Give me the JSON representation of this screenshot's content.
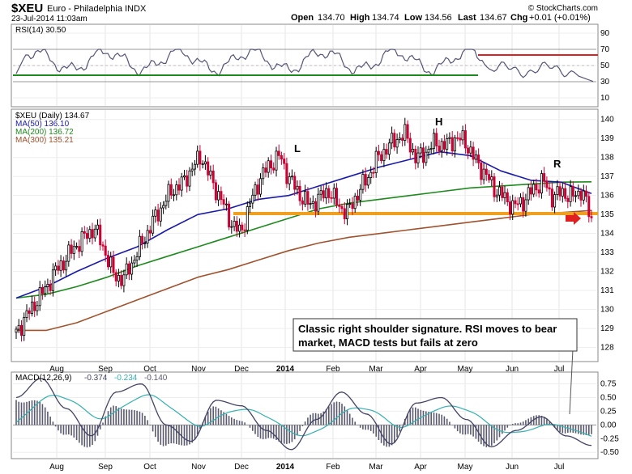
{
  "header": {
    "symbol": "$XEU",
    "name": "Euro - Philadelphia INDX",
    "datetime": "23-Jul-2014 11:03am",
    "open_label": "Open",
    "open": "134.70",
    "high_label": "High",
    "high": "134.74",
    "low_label": "Low",
    "low": "134.56",
    "last_label": "Last",
    "last": "134.67",
    "chg_label": "Chg",
    "chg": "+0.01 (+0.01%)",
    "watermark": "© StockCharts.com"
  },
  "colors": {
    "price_up": "#000000",
    "price_down": "#cc0033",
    "ma50": "#1a1aaa",
    "ma200": "#1e8a1e",
    "ma300": "#a0522d",
    "support": "#f0a020",
    "rsi_line": "#555577",
    "rsi_green": "#1e8a1e",
    "rsi_red": "#e02020",
    "macd": "#444466",
    "signal": "#36b0b0",
    "hist": "#5a5a70",
    "arrow": "#e02020"
  },
  "chart_data": [
    {
      "type": "line",
      "panel": "RSI",
      "legend": "RSI(14) 30.50",
      "ylim": [
        0,
        100
      ],
      "ticks": [
        "90",
        "70",
        "50",
        "30",
        "10"
      ],
      "tick_values": [
        90,
        70,
        50,
        30,
        10
      ],
      "reference_levels": [
        70,
        30
      ],
      "horizontal_lines": [
        {
          "color": "green",
          "value": 38,
          "from": "Jul",
          "to": "May"
        },
        {
          "color": "red",
          "value": 63,
          "from": "May",
          "to": "Jul-end"
        }
      ],
      "last_value": 30.5
    },
    {
      "type": "candlestick",
      "panel": "Price",
      "legend": [
        {
          "label": "$XEU (Daily) 134.67",
          "color": "#000000"
        },
        {
          "label": "MA(50) 136.10",
          "color": "#1a1aaa"
        },
        {
          "label": "MA(200) 136.72",
          "color": "#1e8a1e"
        },
        {
          "label": "MA(300) 135.21",
          "color": "#a0522d"
        }
      ],
      "ylim": [
        127.3,
        140.5
      ],
      "yticks": [
        "140",
        "139",
        "138",
        "137",
        "136",
        "135",
        "134",
        "133",
        "132",
        "131",
        "130",
        "129",
        "128"
      ],
      "ytick_values": [
        140,
        139,
        138,
        137,
        136,
        135,
        134,
        133,
        132,
        131,
        130,
        129,
        128
      ],
      "support_level": 135.05,
      "pattern_labels": [
        "L",
        "H",
        "R"
      ],
      "annotation": "Classic right shoulder signature. RSI moves to bear market, MACD tests but fails at zero",
      "closes_approx": [
        128.8,
        129.6,
        130.4,
        131.1,
        132.0,
        132.6,
        133.3,
        133.8,
        134.3,
        133.2,
        131.8,
        131.6,
        132.6,
        133.6,
        134.6,
        135.5,
        136.3,
        136.6,
        137.4,
        138.1,
        136.8,
        135.8,
        134.6,
        134.0,
        135.6,
        136.9,
        137.6,
        138.1,
        136.9,
        136.1,
        135.5,
        135.8,
        136.3,
        135.5,
        135.1,
        136.1,
        136.9,
        137.9,
        138.5,
        139.0,
        139.2,
        137.9,
        138.3,
        138.8,
        138.6,
        139.0,
        138.9,
        137.9,
        137.2,
        136.4,
        135.9,
        135.4,
        135.7,
        136.3,
        136.8,
        135.9,
        136.2,
        135.9,
        136.3,
        134.7
      ],
      "ma50_approx": [
        130.6,
        131.2,
        132.0,
        132.7,
        133.3,
        134.2,
        135.0,
        135.3,
        135.8,
        136.0,
        136.5,
        137.0,
        137.5,
        137.9,
        138.3,
        138.1,
        137.3,
        136.8,
        136.7,
        136.1
      ],
      "ma200_approx": [
        130.6,
        130.8,
        131.2,
        131.7,
        132.3,
        132.8,
        133.3,
        133.8,
        134.3,
        134.8,
        135.3,
        135.6,
        135.8,
        136.0,
        136.2,
        136.4,
        136.5,
        136.6,
        136.7,
        136.72
      ],
      "ma300_approx": [
        128.9,
        128.9,
        129.3,
        129.9,
        130.5,
        131.1,
        131.7,
        132.1,
        132.6,
        133.1,
        133.5,
        133.8,
        134.0,
        134.2,
        134.4,
        134.6,
        134.8,
        135.0,
        135.1,
        135.21
      ]
    },
    {
      "type": "line",
      "panel": "MACD",
      "legend": "MACD(12,26,9)",
      "legend_values": [
        "-0.374",
        "-0.234",
        "-0.140"
      ],
      "legend_colors": [
        "#444466",
        "#36b0b0",
        "#5a5a70"
      ],
      "ylim": [
        -0.6,
        0.95
      ],
      "yticks": [
        "0.75",
        "0.50",
        "0.25",
        "0.00",
        "-0.25",
        "-0.50"
      ],
      "ytick_values": [
        0.75,
        0.5,
        0.25,
        0.0,
        -0.25,
        -0.5
      ],
      "macd_approx": [
        0.5,
        0.85,
        0.3,
        -0.2,
        0.6,
        0.75,
        0.0,
        -0.3,
        0.45,
        0.35,
        -0.1,
        -0.45,
        0.1,
        0.6,
        0.2,
        -0.35,
        0.4,
        0.5,
        0.1,
        -0.4,
        -0.1,
        0.15,
        -0.2,
        -0.374
      ]
    }
  ],
  "x_axis": {
    "months": [
      "Aug",
      "Sep",
      "Oct",
      "Nov",
      "Dec",
      "2014",
      "Feb",
      "Mar",
      "Apr",
      "May",
      "Jun",
      "Jul"
    ]
  }
}
